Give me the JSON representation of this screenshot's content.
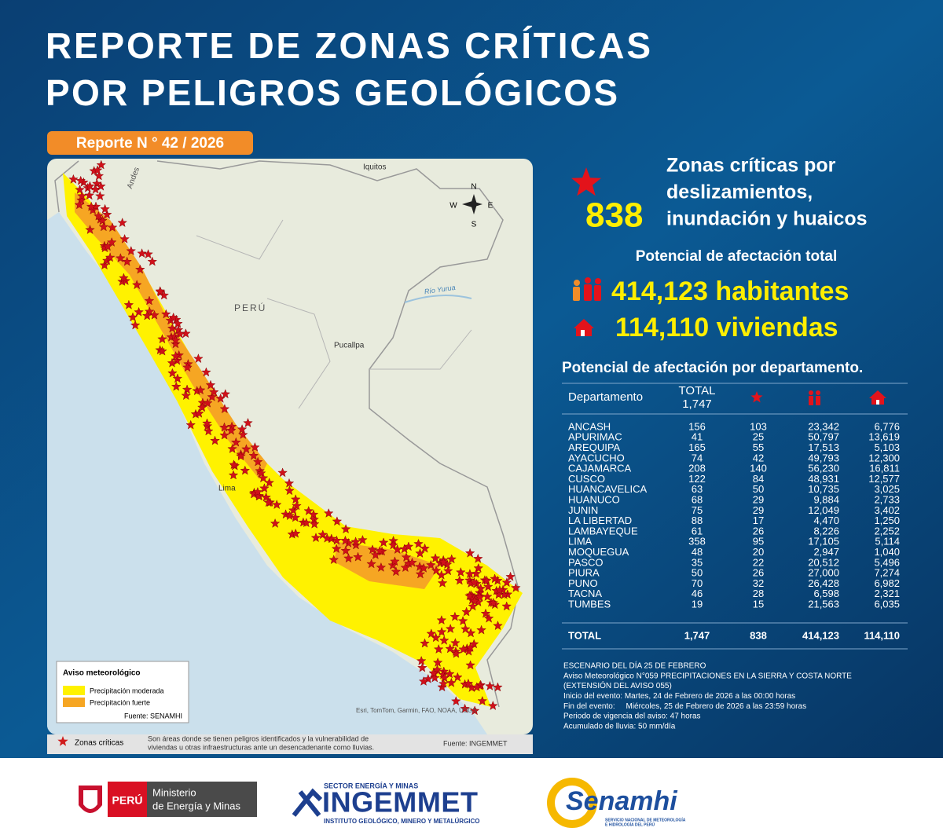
{
  "header": {
    "title": [
      "REPORTE DE ZONAS CRÍTICAS",
      "POR PELIGROS GEOLÓGICOS"
    ],
    "report": "Reporte N ° 42 / 2026"
  },
  "map": {
    "places": [
      "Iquitos",
      "Andes",
      "PERÚ",
      "Pucallpa",
      "Río Yurua",
      "Lima"
    ],
    "compass": [
      "N",
      "S",
      "E",
      "W"
    ],
    "legend": {
      "title": "Aviso meteorológico",
      "items": [
        "Precipitación moderada",
        "Precipitación fuerte"
      ],
      "source": "Fuente: SENAMHI"
    },
    "attribution": "Esri, TomTom, Garmin, FAO, NOAA, USGS"
  },
  "note": {
    "label": "Zonas críticas",
    "text": [
      "Son áreas donde se tienen peligros identificados y la vulnerabilidad de",
      "viviendas u otras infraestructuras ante un desencadenante como lluvias."
    ],
    "source": "Fuente: INGEMMET"
  },
  "summary": {
    "count": "838",
    "label": [
      "Zonas críticas por",
      "deslizamientos,",
      "inundación y huaicos"
    ],
    "subtitle": "Potencial de afectación total",
    "population": "414,123 habitantes",
    "housing": "114,110 viviendas"
  },
  "table": {
    "title": "Potencial de afectación por departamento.",
    "department": "Departamento",
    "total": [
      "TOTAL",
      "1,747",
      "838",
      "414,123",
      "114,110"
    ],
    "rows": [
      [
        "ANCASH",
        "156",
        "103",
        "23,342",
        "6,776"
      ],
      [
        "APURIMAC",
        "41",
        "25",
        "50,797",
        "13,619"
      ],
      [
        "AREQUIPA",
        "165",
        "55",
        "17,513",
        "5,103"
      ],
      [
        "AYACUCHO",
        "74",
        "42",
        "49,793",
        "12,300"
      ],
      [
        "CAJAMARCA",
        "208",
        "140",
        "56,230",
        "16,811"
      ],
      [
        "CUSCO",
        "122",
        "84",
        "48,931",
        "12,577"
      ],
      [
        "HUANCAVELICA",
        "63",
        "50",
        "10,735",
        "3,025"
      ],
      [
        "HUANUCO",
        "68",
        "29",
        "9,884",
        "2,733"
      ],
      [
        "JUNIN",
        "75",
        "29",
        "12,049",
        "3,402"
      ],
      [
        "LA LIBERTAD",
        "88",
        "17",
        "4,470",
        "1,250"
      ],
      [
        "LAMBAYEQUE",
        "61",
        "26",
        "8,226",
        "2,252"
      ],
      [
        "LIMA",
        "358",
        "95",
        "17,105",
        "5,114"
      ],
      [
        "MOQUEGUA",
        "48",
        "20",
        "2,947",
        "1,040"
      ],
      [
        "PASCO",
        "35",
        "22",
        "20,512",
        "5,496"
      ],
      [
        "PIURA",
        "50",
        "26",
        "27,000",
        "7,274"
      ],
      [
        "PUNO",
        "70",
        "32",
        "26,428",
        "6,982"
      ],
      [
        "TACNA",
        "46",
        "28",
        "6,598",
        "2,321"
      ],
      [
        "TUMBES",
        "19",
        "15",
        "21,563",
        "6,035"
      ]
    ]
  },
  "scenario": [
    "ESCENARIO DEL DÍA 25 DE FEBRERO",
    "Aviso Meteorológico N°059 PRECIPITACIONES EN LA SIERRA Y COSTA NORTE",
    "(EXTENSIÓN DEL AVISO 055)",
    "Inicio del evento: Martes, 24 de Febrero de 2026 a las 00:00 horas",
    "Fin del evento:     Miércoles, 25 de Febrero de 2026 a las 23:59 horas",
    "Periodo de vigencia del aviso: 47 horas",
    "Acumulado de lluvia: 50 mm/día"
  ],
  "logos": {
    "peru": "PERÚ",
    "ministry": [
      "Ministerio",
      "de Energía y Minas"
    ],
    "sector": "SECTOR ENERGÍA Y MINAS",
    "ingemmet": "INGEMMET",
    "ingemmet_full": "INSTITUTO GEOLÓGICO, MINERO Y METALÚRGICO",
    "senamhi": "Senamhi",
    "senamhi_full": [
      "SERVICIO NACIONAL DE METEOROLOGÍA",
      "E HIDROLOGÍA DEL PERÚ"
    ]
  }
}
